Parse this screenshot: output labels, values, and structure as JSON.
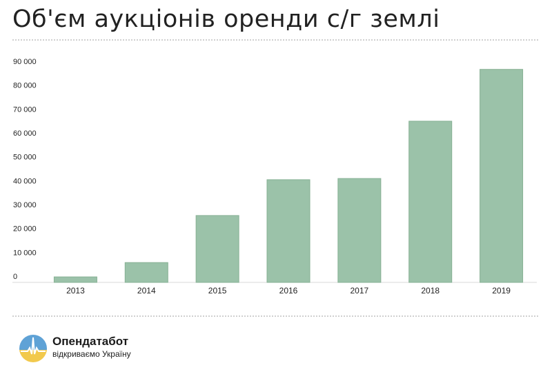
{
  "title": "Об'єм аукціонів оренди с/г землі",
  "brand": {
    "name": "Опендатабот",
    "tagline": "відкриваємо Україну",
    "colors": {
      "sky": "#5fa2d6",
      "field": "#f2c94c"
    }
  },
  "colors": {
    "bar_fill": "#9bc2a9",
    "bar_stroke": "#86b093",
    "grid": "#e6e6e6"
  },
  "chart_data": {
    "type": "bar",
    "title": "Об'єм аукціонів оренди с/г землі",
    "xlabel": "",
    "ylabel": "",
    "categories": [
      "2013",
      "2014",
      "2015",
      "2016",
      "2017",
      "2018",
      "2019"
    ],
    "values": [
      2300,
      8300,
      28000,
      43000,
      43500,
      67500,
      89200
    ],
    "ylim": [
      0,
      92000
    ],
    "yticks": [
      0,
      10000,
      20000,
      30000,
      40000,
      50000,
      60000,
      70000,
      80000,
      90000
    ],
    "ytick_labels": [
      "0",
      "10 000",
      "20 000",
      "30 000",
      "40 000",
      "50 000",
      "60 000",
      "70 000",
      "80 000",
      "90 000"
    ],
    "grid": true,
    "legend": "none"
  }
}
